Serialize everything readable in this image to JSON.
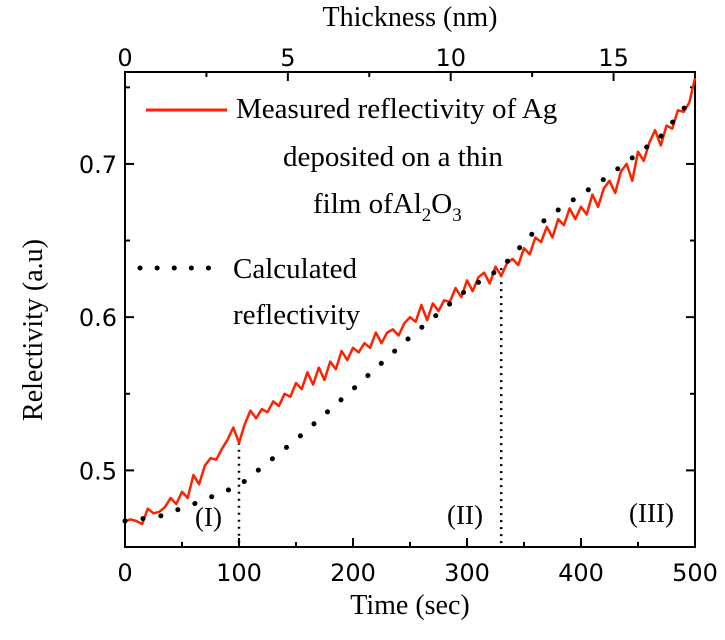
{
  "chart_data": {
    "type": "line",
    "xlabel": "Time (sec)",
    "ylabel": "Relectivity (a.u)",
    "x2label": "Thickness (nm)",
    "xlim": [
      0,
      500
    ],
    "x2lim": [
      0,
      17.5
    ],
    "ylim": [
      0.45,
      0.76
    ],
    "x_ticks": [
      "0",
      "100",
      "200",
      "300",
      "400",
      "500"
    ],
    "x2_ticks": [
      "0",
      "5",
      "10",
      "15"
    ],
    "y_ticks": [
      "0.5",
      "0.6",
      "0.7"
    ],
    "legend": {
      "measured_line1": "Measured reflectivity of Ag",
      "measured_line2": "deposited on a thin",
      "measured_line3_a": "film of",
      "measured_line3_b": "Al",
      "measured_sub1": "2",
      "measured_line3_c": "O",
      "measured_sub2": "3",
      "calculated_line1": "Calculated",
      "calculated_line2": "reflectivity"
    },
    "region_labels": [
      "(I)",
      "(II)",
      "(III)"
    ],
    "region_dividers_x": [
      100,
      330
    ],
    "series": [
      {
        "name": "Measured reflectivity of Ag deposited on a thin film of Al2O3",
        "color": "#ff2200",
        "style": "solid",
        "x": [
          0,
          5,
          10,
          15,
          20,
          25,
          30,
          35,
          40,
          45,
          50,
          55,
          60,
          65,
          70,
          75,
          80,
          85,
          90,
          95,
          100,
          105,
          110,
          115,
          120,
          125,
          130,
          135,
          140,
          145,
          150,
          155,
          160,
          165,
          170,
          175,
          180,
          185,
          190,
          195,
          200,
          205,
          210,
          215,
          220,
          225,
          230,
          235,
          240,
          245,
          250,
          255,
          260,
          265,
          270,
          275,
          280,
          285,
          290,
          295,
          300,
          305,
          310,
          315,
          320,
          325,
          330,
          335,
          340,
          345,
          350,
          355,
          360,
          365,
          370,
          375,
          380,
          385,
          390,
          395,
          400,
          405,
          410,
          415,
          420,
          425,
          430,
          435,
          440,
          445,
          450,
          455,
          460,
          465,
          470,
          475,
          480,
          485,
          490,
          495,
          500
        ],
        "y": [
          0.467,
          0.468,
          0.467,
          0.465,
          0.475,
          0.472,
          0.473,
          0.476,
          0.482,
          0.478,
          0.486,
          0.482,
          0.497,
          0.491,
          0.503,
          0.508,
          0.507,
          0.514,
          0.52,
          0.528,
          0.518,
          0.53,
          0.539,
          0.534,
          0.54,
          0.538,
          0.545,
          0.542,
          0.55,
          0.548,
          0.557,
          0.553,
          0.564,
          0.556,
          0.567,
          0.559,
          0.571,
          0.566,
          0.578,
          0.572,
          0.58,
          0.577,
          0.583,
          0.58,
          0.59,
          0.583,
          0.59,
          0.592,
          0.588,
          0.596,
          0.6,
          0.597,
          0.608,
          0.598,
          0.609,
          0.604,
          0.611,
          0.61,
          0.619,
          0.613,
          0.624,
          0.617,
          0.626,
          0.629,
          0.622,
          0.633,
          0.627,
          0.635,
          0.638,
          0.634,
          0.645,
          0.641,
          0.652,
          0.649,
          0.659,
          0.652,
          0.664,
          0.66,
          0.671,
          0.664,
          0.672,
          0.667,
          0.68,
          0.672,
          0.684,
          0.689,
          0.681,
          0.695,
          0.7,
          0.689,
          0.708,
          0.702,
          0.714,
          0.722,
          0.712,
          0.725,
          0.723,
          0.735,
          0.734,
          0.74,
          0.756
        ]
      },
      {
        "name": "Calculated reflectivity",
        "color": "#000000",
        "style": "dotted",
        "x": [
          0,
          30,
          60,
          100,
          150,
          200,
          250,
          300,
          330,
          370,
          420,
          470,
          500
        ],
        "y": [
          0.467,
          0.47,
          0.478,
          0.49,
          0.52,
          0.553,
          0.587,
          0.618,
          0.632,
          0.665,
          0.69,
          0.718,
          0.745
        ]
      }
    ]
  }
}
